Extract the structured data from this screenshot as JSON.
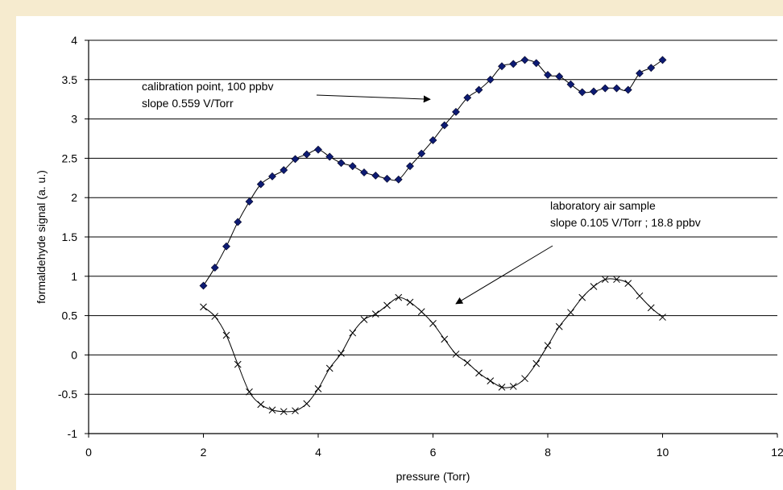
{
  "chart_data": {
    "type": "scatter",
    "title": "",
    "xlabel": "pressure (Torr)",
    "ylabel": "formaldehyde signal (a. u.)",
    "xlim": [
      0,
      12
    ],
    "ylim": [
      -1,
      4
    ],
    "xticks": [
      0,
      2,
      4,
      6,
      8,
      10,
      12
    ],
    "yticks": [
      -1,
      -0.5,
      0,
      0.5,
      1,
      1.5,
      2,
      2.5,
      3,
      3.5,
      4
    ],
    "grid": "horizontal",
    "series": [
      {
        "marker": "diamond",
        "color": "#0d1b73",
        "x": [
          2.0,
          2.2,
          2.4,
          2.6,
          2.8,
          3.0,
          3.2,
          3.4,
          3.6,
          3.8,
          4.0,
          4.2,
          4.4,
          4.6,
          4.8,
          5.0,
          5.2,
          5.4,
          5.6,
          5.8,
          6.0,
          6.2,
          6.4,
          6.6,
          6.8,
          7.0,
          7.2,
          7.4,
          7.6,
          7.8,
          8.0,
          8.2,
          8.4,
          8.6,
          8.8,
          9.0,
          9.2,
          9.4,
          9.6,
          9.8,
          10.0
        ],
        "y": [
          0.88,
          1.11,
          1.38,
          1.69,
          1.95,
          2.17,
          2.27,
          2.35,
          2.49,
          2.55,
          2.61,
          2.52,
          2.44,
          2.4,
          2.32,
          2.28,
          2.24,
          2.23,
          2.4,
          2.56,
          2.73,
          2.92,
          3.09,
          3.27,
          3.37,
          3.5,
          3.67,
          3.7,
          3.75,
          3.71,
          3.56,
          3.54,
          3.44,
          3.34,
          3.35,
          3.39,
          3.39,
          3.37,
          3.58,
          3.65,
          3.75
        ]
      },
      {
        "marker": "x",
        "color": "#000000",
        "x": [
          2.0,
          2.2,
          2.4,
          2.6,
          2.8,
          3.0,
          3.2,
          3.4,
          3.6,
          3.8,
          4.0,
          4.2,
          4.4,
          4.6,
          4.8,
          5.0,
          5.2,
          5.4,
          5.6,
          5.8,
          6.0,
          6.2,
          6.4,
          6.6,
          6.8,
          7.0,
          7.2,
          7.4,
          7.6,
          7.8,
          8.0,
          8.2,
          8.4,
          8.6,
          8.8,
          9.0,
          9.2,
          9.4,
          9.6,
          9.8,
          10.0
        ],
        "y": [
          0.61,
          0.49,
          0.25,
          -0.12,
          -0.47,
          -0.63,
          -0.7,
          -0.72,
          -0.71,
          -0.62,
          -0.43,
          -0.17,
          0.02,
          0.28,
          0.45,
          0.52,
          0.63,
          0.73,
          0.67,
          0.55,
          0.4,
          0.2,
          0.01,
          -0.1,
          -0.23,
          -0.33,
          -0.41,
          -0.4,
          -0.3,
          -0.11,
          0.12,
          0.36,
          0.54,
          0.73,
          0.87,
          0.96,
          0.96,
          0.91,
          0.75,
          0.6,
          0.48
        ]
      }
    ],
    "annotations": [
      {
        "lines": [
          "calibration point, 100 ppbv",
          "slope 0.559 V/Torr"
        ],
        "arrow_to": [
          5.95,
          3.25
        ]
      },
      {
        "lines": [
          "laboratory air sample",
          "slope 0.105 V/Torr ; 18.8 ppbv"
        ],
        "arrow_to": [
          6.4,
          0.65
        ]
      }
    ]
  }
}
